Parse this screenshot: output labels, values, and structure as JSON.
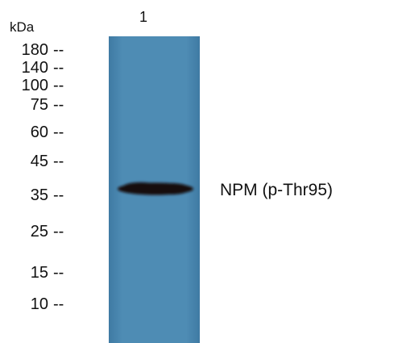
{
  "unit_label": "kDa",
  "lane_number": "1",
  "markers": [
    {
      "label": "180",
      "tick": "--"
    },
    {
      "label": "140",
      "tick": "--"
    },
    {
      "label": "100",
      "tick": "--"
    },
    {
      "label": "75",
      "tick": "--"
    },
    {
      "label": "60",
      "tick": "--"
    },
    {
      "label": "45",
      "tick": "--"
    },
    {
      "label": "35",
      "tick": "--"
    },
    {
      "label": "25",
      "tick": "--"
    },
    {
      "label": "15",
      "tick": "--"
    },
    {
      "label": "10",
      "tick": "--"
    }
  ],
  "band_label": "NPM (p-Thr95)",
  "colors": {
    "membrane": "#4f8db5",
    "band": "#1a0c0f",
    "text": "#111111"
  }
}
